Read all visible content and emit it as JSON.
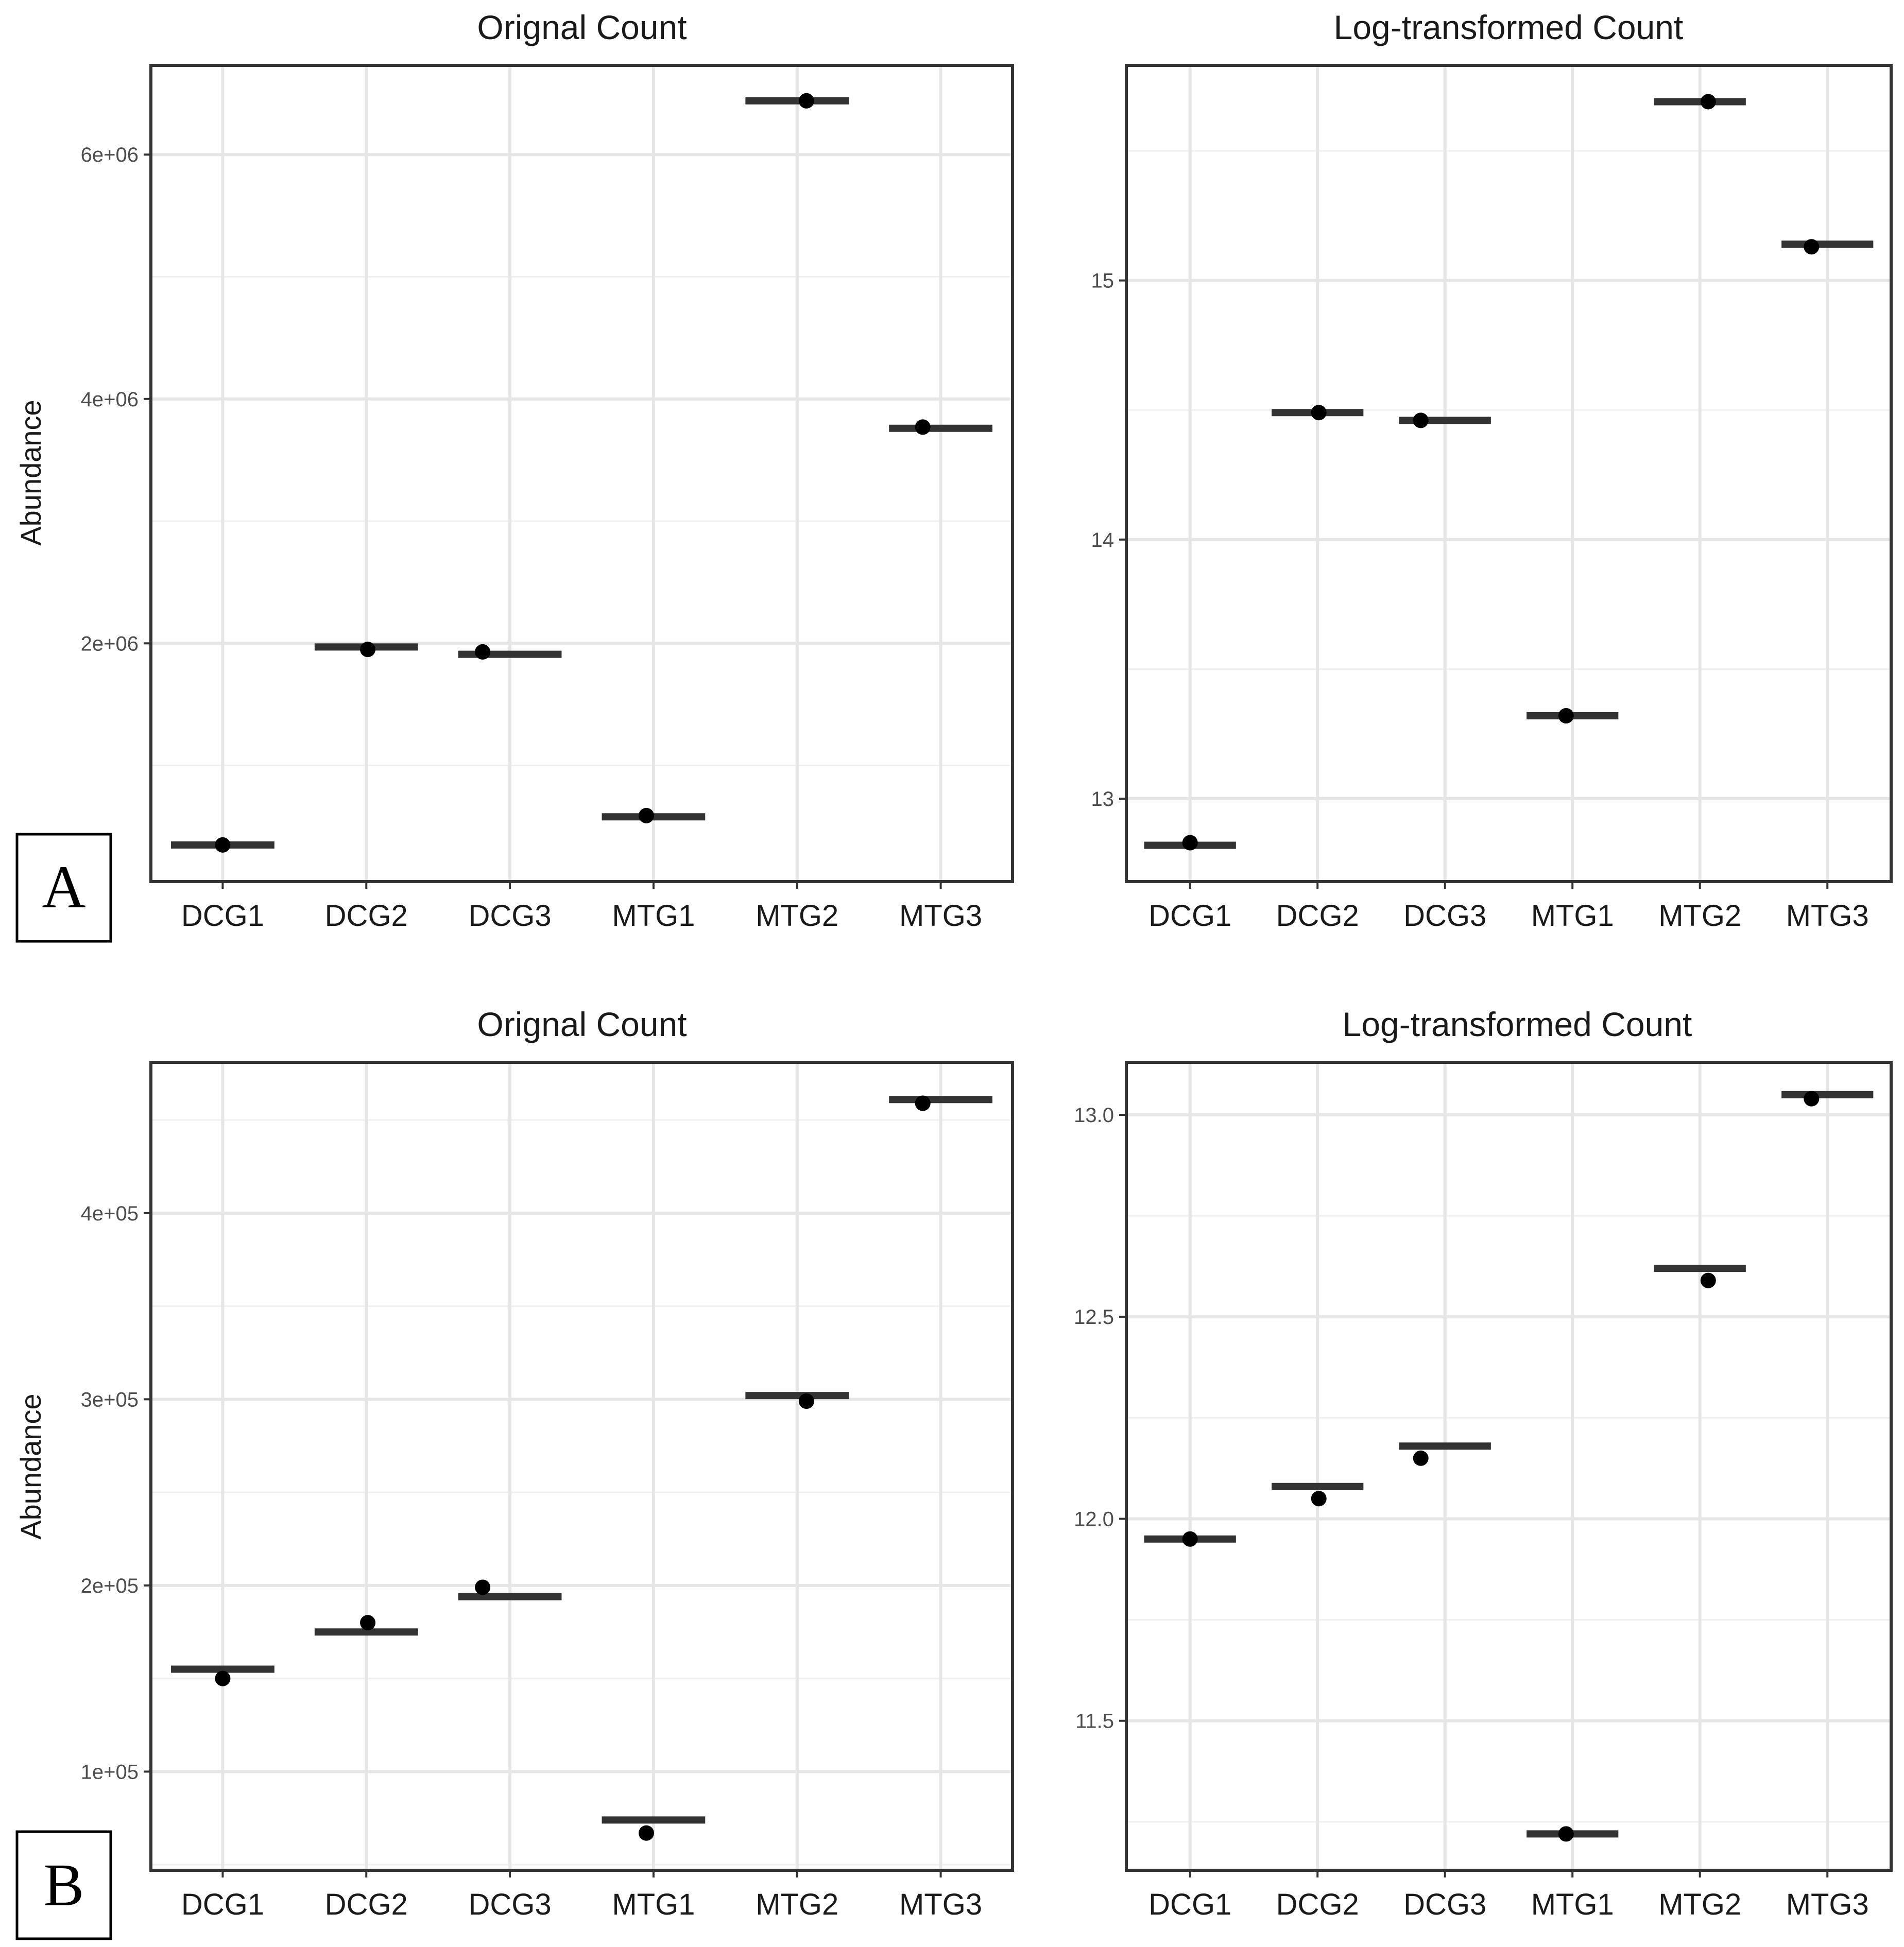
{
  "panel_labels": [
    "A",
    "B"
  ],
  "chart_data": [
    {
      "type": "scatter",
      "title": "Orignal Count",
      "xlabel": "",
      "ylabel": "Abundance",
      "categories": [
        "DCG1",
        "DCG2",
        "DCG3",
        "MTG1",
        "MTG2",
        "MTG3"
      ],
      "points": [
        350000,
        1950000,
        1930000,
        590000,
        6440000,
        3770000
      ],
      "means": [
        350000,
        1970000,
        1910000,
        580000,
        6440000,
        3760000
      ],
      "yticks": [
        2000000,
        4000000,
        6000000
      ],
      "ytick_labels": [
        "2e+06",
        "4e+06",
        "6e+06"
      ],
      "ylim": [
        50000,
        6730000
      ],
      "grid": true
    },
    {
      "type": "scatter",
      "title": "Log-transformed Count",
      "xlabel": "",
      "ylabel": "",
      "categories": [
        "DCG1",
        "DCG2",
        "DCG3",
        "MTG1",
        "MTG2",
        "MTG3"
      ],
      "points": [
        12.83,
        14.49,
        14.46,
        13.32,
        15.69,
        15.13
      ],
      "means": [
        12.82,
        14.49,
        14.46,
        13.32,
        15.69,
        15.14
      ],
      "yticks": [
        13,
        14,
        15
      ],
      "ytick_labels": [
        "13",
        "14",
        "15"
      ],
      "ylim": [
        12.68,
        15.83
      ],
      "grid": true
    },
    {
      "type": "scatter",
      "title": "Orignal Count",
      "xlabel": "",
      "ylabel": "Abundance",
      "categories": [
        "DCG1",
        "DCG2",
        "DCG3",
        "MTG1",
        "MTG2",
        "MTG3"
      ],
      "points": [
        150000,
        180000,
        199000,
        67000,
        299000,
        459000
      ],
      "means": [
        155000,
        175000,
        194000,
        74000,
        302000,
        461000
      ],
      "yticks": [
        100000,
        200000,
        300000,
        400000
      ],
      "ytick_labels": [
        "1e+05",
        "2e+05",
        "3e+05",
        "4e+05"
      ],
      "ylim": [
        47000,
        481000
      ],
      "grid": true
    },
    {
      "type": "scatter",
      "title": "Log-transformed Count",
      "xlabel": "",
      "ylabel": "",
      "categories": [
        "DCG1",
        "DCG2",
        "DCG3",
        "MTG1",
        "MTG2",
        "MTG3"
      ],
      "points": [
        11.95,
        12.05,
        12.15,
        11.22,
        12.59,
        13.04
      ],
      "means": [
        11.95,
        12.08,
        12.18,
        11.22,
        12.62,
        13.05
      ],
      "yticks": [
        11.5,
        12.0,
        12.5,
        13.0
      ],
      "ytick_labels": [
        "11.5",
        "12.0",
        "12.5",
        "13.0"
      ],
      "ylim": [
        11.13,
        13.13
      ],
      "grid": true
    }
  ]
}
